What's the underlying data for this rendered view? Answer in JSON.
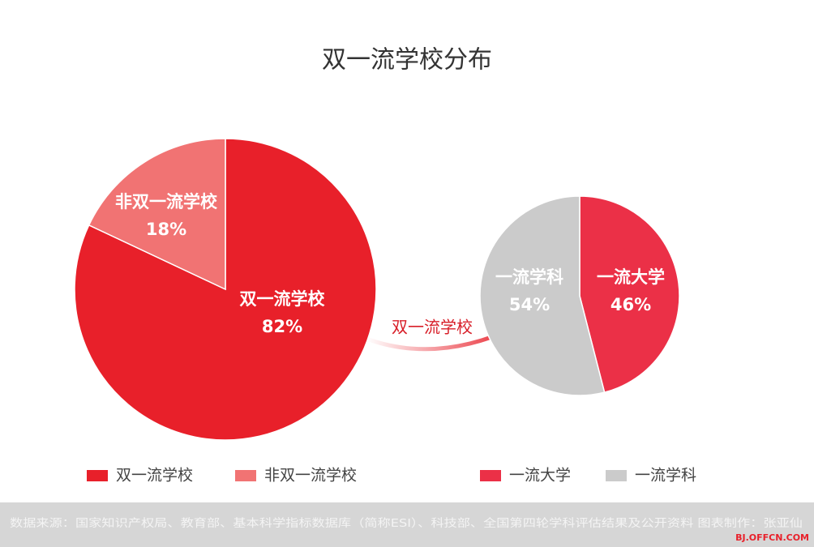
{
  "title": "双一流学校分布",
  "arrow_label": "双一流学校",
  "footer": "数据来源：国家知识产权局、教育部、基本科学指标数据库（简称ESI）、科技部、全国第四轮学科评估结果及公开资料  图表制作：张亚仙",
  "site": "BJ.OFFCN.COM",
  "chart_data": [
    {
      "type": "pie",
      "categories": [
        "双一流学校",
        "非双一流学校"
      ],
      "values": [
        82,
        18
      ],
      "value_labels": [
        "82%",
        "18%"
      ],
      "colors": [
        "#e8202a",
        "#f17373"
      ]
    },
    {
      "type": "pie",
      "categories": [
        "一流大学",
        "一流学科"
      ],
      "values": [
        46,
        54
      ],
      "value_labels": [
        "46%",
        "54%"
      ],
      "colors": [
        "#eb3047",
        "#cbcbcb"
      ]
    }
  ]
}
